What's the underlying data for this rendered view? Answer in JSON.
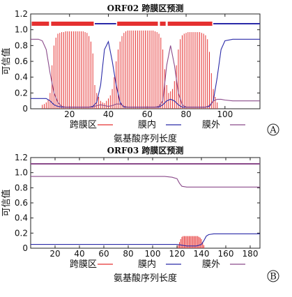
{
  "chart_data": [
    {
      "type": "line",
      "panel_label": "A",
      "title": "ORF02 跨膜区预测",
      "xlabel": "氨基酸序列长度",
      "ylabel": "可信值",
      "xlim": [
        0,
        118
      ],
      "ylim": [
        0,
        1.2
      ],
      "xticks": [
        20,
        40,
        60,
        80,
        100
      ],
      "yticks": [
        0,
        0.2,
        0.4,
        0.6,
        0.8,
        1.0,
        1.2
      ],
      "ytick_labels": [
        "0",
        "0.2",
        "0.4",
        "0.6",
        "0.8",
        "1.0",
        "1.2"
      ],
      "legend_position": "bottom",
      "series": [
        {
          "name": "跨膜区",
          "color": "#e53030",
          "style": "impulse",
          "x": [
            6,
            7,
            8,
            9,
            10,
            11,
            12,
            13,
            14,
            15,
            16,
            17,
            18,
            19,
            20,
            21,
            22,
            23,
            24,
            25,
            26,
            27,
            28,
            29,
            30,
            31,
            32,
            33,
            34,
            35,
            36,
            37,
            38,
            39,
            40,
            41,
            42,
            43,
            44,
            45,
            46,
            47,
            48,
            49,
            50,
            51,
            52,
            53,
            54,
            55,
            56,
            57,
            58,
            59,
            60,
            61,
            62,
            63,
            64,
            65,
            66,
            67,
            68,
            69,
            70,
            71,
            72,
            73,
            74,
            75,
            76,
            77,
            78,
            79,
            80,
            81,
            82,
            83,
            84,
            85,
            86,
            87,
            88,
            89,
            90,
            91,
            92,
            93,
            94,
            95,
            96
          ],
          "y": [
            0.05,
            0.06,
            0.08,
            0.12,
            0.2,
            0.55,
            0.8,
            0.9,
            0.95,
            0.96,
            0.97,
            0.97,
            0.98,
            0.98,
            0.98,
            0.98,
            0.98,
            0.98,
            0.98,
            0.98,
            0.98,
            0.98,
            0.97,
            0.96,
            0.92,
            0.85,
            0.7,
            0.3,
            0.2,
            0.15,
            0.1,
            0.08,
            0.07,
            0.1,
            0.13,
            0.17,
            0.25,
            0.4,
            0.6,
            0.75,
            0.85,
            0.92,
            0.96,
            0.98,
            0.99,
            0.99,
            0.99,
            0.99,
            0.99,
            0.99,
            0.99,
            0.99,
            0.99,
            0.99,
            0.99,
            0.99,
            0.99,
            0.99,
            0.98,
            0.97,
            0.95,
            0.9,
            0.75,
            0.5,
            0.3,
            0.2,
            0.22,
            0.25,
            0.35,
            0.55,
            0.75,
            0.88,
            0.93,
            0.95,
            0.96,
            0.97,
            0.97,
            0.97,
            0.97,
            0.97,
            0.97,
            0.97,
            0.96,
            0.95,
            0.93,
            0.88,
            0.72,
            0.45,
            0.25,
            0.15,
            0.08
          ]
        },
        {
          "name": "膜内",
          "color": "#2a2aa8",
          "style": "line",
          "x": [
            0,
            8,
            10,
            12,
            14,
            16,
            18,
            20,
            22,
            24,
            26,
            28,
            30,
            32,
            34,
            36,
            38,
            40,
            42,
            44,
            46,
            48,
            50,
            52,
            54,
            56,
            58,
            60,
            62,
            64,
            66,
            68,
            70,
            72,
            74,
            76,
            78,
            80,
            82,
            84,
            86,
            88,
            90,
            92,
            94,
            96,
            98,
            100,
            104,
            110,
            118
          ],
          "y": [
            0.13,
            0.13,
            0.1,
            0.05,
            0.03,
            0.02,
            0.02,
            0.02,
            0.02,
            0.02,
            0.02,
            0.02,
            0.02,
            0.03,
            0.08,
            0.3,
            0.75,
            0.85,
            0.6,
            0.3,
            0.08,
            0.02,
            0.02,
            0.02,
            0.02,
            0.02,
            0.02,
            0.02,
            0.02,
            0.02,
            0.02,
            0.05,
            0.1,
            0.12,
            0.1,
            0.05,
            0.02,
            0.02,
            0.02,
            0.02,
            0.02,
            0.02,
            0.02,
            0.03,
            0.1,
            0.4,
            0.75,
            0.86,
            0.88,
            0.88,
            0.88
          ]
        },
        {
          "name": "膜外",
          "color": "#8a4a8a",
          "style": "line",
          "x": [
            0,
            4,
            6,
            8,
            10,
            12,
            14,
            16,
            18,
            20,
            22,
            24,
            26,
            28,
            30,
            32,
            34,
            36,
            38,
            40,
            42,
            44,
            46,
            48,
            50,
            52,
            54,
            56,
            58,
            60,
            62,
            64,
            66,
            68,
            70,
            72,
            74,
            76,
            78,
            80,
            82,
            84,
            86,
            88,
            90,
            92,
            94,
            96,
            98,
            100,
            104,
            110,
            118
          ],
          "y": [
            0.88,
            0.88,
            0.86,
            0.75,
            0.45,
            0.2,
            0.08,
            0.03,
            0.02,
            0.02,
            0.02,
            0.02,
            0.02,
            0.02,
            0.02,
            0.02,
            0.04,
            0.05,
            0.04,
            0.03,
            0.04,
            0.06,
            0.06,
            0.03,
            0.02,
            0.02,
            0.02,
            0.02,
            0.02,
            0.02,
            0.02,
            0.02,
            0.03,
            0.1,
            0.55,
            0.8,
            0.55,
            0.2,
            0.05,
            0.02,
            0.02,
            0.02,
            0.02,
            0.02,
            0.02,
            0.04,
            0.1,
            0.12,
            0.12,
            0.11,
            0.1,
            0.1,
            0.1
          ]
        }
      ],
      "topology": [
        {
          "class": "跨膜区",
          "x0": 0,
          "x1": 10
        },
        {
          "class": "跨膜区",
          "x0": 10,
          "x1": 33
        },
        {
          "class": "膜内",
          "x0": 33,
          "x1": 44
        },
        {
          "class": "跨膜区",
          "x0": 44,
          "x1": 66
        },
        {
          "class": "跨膜区",
          "x0": 66,
          "x1": 70
        },
        {
          "class": "跨膜区",
          "x0": 70,
          "x1": 94
        },
        {
          "class": "膜内",
          "x0": 94,
          "x1": 118
        }
      ]
    },
    {
      "type": "line",
      "panel_label": "B",
      "title": "ORF03 跨膜区预测",
      "xlabel": "氨基酸序列长度",
      "ylabel": "可信值",
      "xlim": [
        0,
        188
      ],
      "ylim": [
        0,
        1.2
      ],
      "xticks": [
        20,
        40,
        60,
        80,
        100,
        120,
        140,
        160,
        180
      ],
      "yticks": [
        0,
        0.2,
        0.4,
        0.6,
        0.8,
        1.0,
        1.2
      ],
      "ytick_labels": [
        "0",
        "0.2",
        "0.4",
        "0.6",
        "0.8",
        "1.0",
        "1.2"
      ],
      "legend_position": "bottom",
      "series": [
        {
          "name": "跨膜区",
          "color": "#e53030",
          "style": "impulse",
          "x": [
            121,
            122,
            123,
            124,
            125,
            126,
            127,
            128,
            129,
            130,
            131,
            132,
            133,
            134,
            135,
            136,
            137,
            138,
            139,
            140,
            141,
            142
          ],
          "y": [
            0.04,
            0.08,
            0.12,
            0.15,
            0.16,
            0.16,
            0.16,
            0.16,
            0.16,
            0.16,
            0.16,
            0.16,
            0.16,
            0.16,
            0.16,
            0.16,
            0.16,
            0.15,
            0.14,
            0.12,
            0.08,
            0.04
          ]
        },
        {
          "name": "膜内",
          "color": "#2a2aa8",
          "style": "line",
          "x": [
            0,
            120,
            124,
            128,
            132,
            136,
            140,
            142,
            144,
            146,
            150,
            170,
            188
          ],
          "y": [
            0.05,
            0.05,
            0.04,
            0.03,
            0.03,
            0.03,
            0.05,
            0.1,
            0.16,
            0.18,
            0.19,
            0.19,
            0.19
          ]
        },
        {
          "name": "膜外",
          "color": "#8a4a8a",
          "style": "line",
          "x": [
            0,
            100,
            110,
            116,
            120,
            122,
            124,
            128,
            140,
            160,
            188
          ],
          "y": [
            0.95,
            0.95,
            0.95,
            0.94,
            0.92,
            0.86,
            0.82,
            0.81,
            0.81,
            0.81,
            0.81
          ]
        }
      ],
      "topology": [
        {
          "class": "膜外",
          "x0": 0,
          "x1": 188
        }
      ]
    }
  ]
}
